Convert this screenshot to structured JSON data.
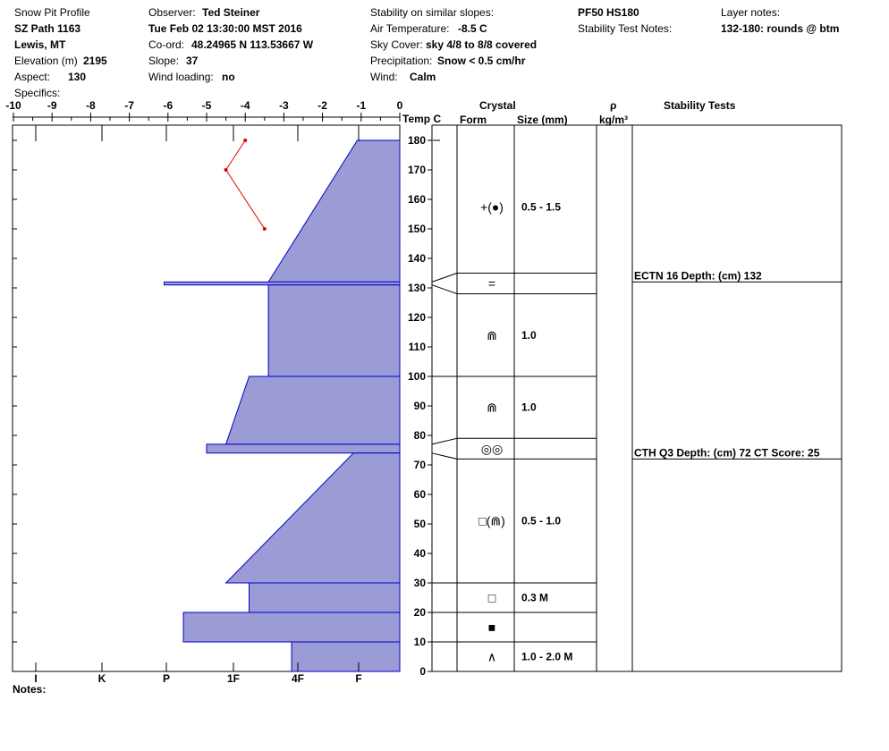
{
  "header": {
    "title": "Snow Pit Profile",
    "location": "SZ Path 1163",
    "area": "Lewis, MT",
    "elevation_label": "Elevation (m)",
    "elevation_value": "2195",
    "aspect_label": "Aspect:",
    "aspect_value": "130",
    "specifics_label": "Specifics:",
    "observer_label": "Observer:",
    "observer_value": "Ted Steiner",
    "datetime": "Tue Feb 02 13:30:00 MST 2016",
    "coord_label": "Co-ord:",
    "coord_value": "48.24965 N 113.53667 W",
    "slope_label": "Slope:",
    "slope_value": "37",
    "wind_loading_label": "Wind loading:",
    "wind_loading_value": "no",
    "stability_label": "Stability on similar slopes:",
    "air_temp_label": "Air Temperature:",
    "air_temp_value": "-8.5 C",
    "sky_label": "Sky Cover:",
    "sky_value": "sky 4/8 to 8/8 covered",
    "precip_label": "Precipitation:",
    "precip_value": "Snow < 0.5 cm/hr",
    "wind_label": "Wind:",
    "wind_value": "Calm",
    "pf_hs": "PF50 HS180",
    "stability_notes_label": "Stability Test Notes:",
    "layer_notes_label": "Layer notes:",
    "layer_notes_value": "132-180: rounds @ btm",
    "notes_label": "Notes:"
  },
  "columns": {
    "temp": "Temp C",
    "crystal": "Crystal",
    "form": "Form",
    "size": "Size (mm)",
    "rho": "ρ",
    "density_unit": "kg/m³",
    "stability": "Stability Tests"
  },
  "chart_data": {
    "type": "snow_profile",
    "temperature_axis": {
      "ticks": [
        "-10",
        "-9",
        "-8",
        "-7",
        "-6",
        "-5",
        "-4",
        "-3",
        "-2",
        "-1",
        "0"
      ],
      "range": [
        -10,
        0
      ]
    },
    "hardness_axis": {
      "ticks": [
        "I",
        "K",
        "P",
        "1F",
        "4F",
        "F"
      ]
    },
    "height_axis": {
      "range": [
        0,
        180
      ],
      "ticks": [
        "0",
        "10",
        "20",
        "30",
        "40",
        "50",
        "60",
        "70",
        "80",
        "90",
        "100",
        "110",
        "120",
        "130",
        "140",
        "150",
        "160",
        "170",
        "180"
      ]
    },
    "hardness_layers": [
      {
        "top": 180,
        "bottom": 132,
        "hardness_top": 1.1,
        "hardness_bottom": 3.4
      },
      {
        "top": 132,
        "bottom": 131,
        "hardness_top": 6.1,
        "hardness_bottom": 6.1
      },
      {
        "top": 131,
        "bottom": 100,
        "hardness_top": 3.4,
        "hardness_bottom": 3.4
      },
      {
        "top": 100,
        "bottom": 77,
        "hardness_top": 3.9,
        "hardness_bottom": 4.5
      },
      {
        "top": 77,
        "bottom": 74,
        "hardness_top": 5.0,
        "hardness_bottom": 5.0
      },
      {
        "top": 74,
        "bottom": 30,
        "hardness_top": 1.2,
        "hardness_bottom": 4.5
      },
      {
        "top": 30,
        "bottom": 20,
        "hardness_top": 3.9,
        "hardness_bottom": 3.9
      },
      {
        "top": 20,
        "bottom": 10,
        "hardness_top": 5.6,
        "hardness_bottom": 5.6
      },
      {
        "top": 10,
        "bottom": 0,
        "hardness_top": 2.8,
        "hardness_bottom": 2.8
      }
    ],
    "temperature_profile": [
      {
        "height": 180,
        "temp": -4.0
      },
      {
        "height": 170,
        "temp": -4.5
      },
      {
        "height": 150,
        "temp": -3.5
      }
    ],
    "layers": [
      {
        "top": 180,
        "bottom": 135,
        "form": "+(●)",
        "size": "0.5 - 1.5"
      },
      {
        "top": 135,
        "bottom": 128,
        "form": "=",
        "size": ""
      },
      {
        "top": 128,
        "bottom": 100,
        "form": "⋒",
        "size": "1.0"
      },
      {
        "top": 100,
        "bottom": 79,
        "form": "⋒",
        "size": "1.0"
      },
      {
        "top": 79,
        "bottom": 72,
        "form": "◎◎",
        "size": ""
      },
      {
        "top": 72,
        "bottom": 30,
        "form": "□(⋒)",
        "size": "0.5 - 1.0"
      },
      {
        "top": 30,
        "bottom": 20,
        "form": "□",
        "size": "0.3 M"
      },
      {
        "top": 20,
        "bottom": 10,
        "form": "■",
        "size": ""
      },
      {
        "top": 10,
        "bottom": 0,
        "form": "∧",
        "size": "1.0 - 2.0 M"
      }
    ],
    "stability_tests": [
      {
        "height": 132,
        "text": "ECTN 16   Depth: (cm) 132"
      },
      {
        "height": 72,
        "text": "CTH Q3 Depth: (cm) 72 CT Score: 25"
      }
    ],
    "colors": {
      "fill": "#9b9bd5",
      "edge": "#0000cc",
      "temp_line": "#dd0000"
    }
  }
}
